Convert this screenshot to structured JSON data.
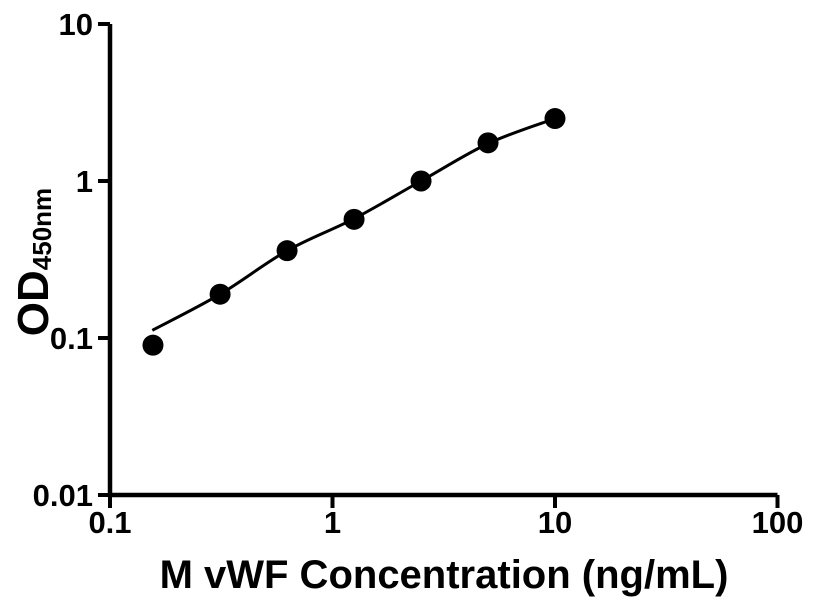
{
  "figure": {
    "background": "#ffffff",
    "axis_color": "#000000"
  },
  "chart_data": {
    "type": "scatter",
    "title": "",
    "xlabel": "M vWF Concentration (ng/mL)",
    "ylabel_main": "OD",
    "ylabel_subscript": "450nm",
    "x_scale": "log",
    "y_scale": "log",
    "xlim": [
      0.1,
      100
    ],
    "ylim": [
      0.01,
      10
    ],
    "x_tick_values": [
      0.1,
      1,
      10,
      100
    ],
    "x_tick_labels": [
      "0.1",
      "1",
      "10",
      "100"
    ],
    "y_tick_values": [
      0.01,
      0.1,
      1,
      10
    ],
    "y_tick_labels": [
      "0.01",
      "0.1",
      "1",
      "10"
    ],
    "grid": false,
    "legend": null,
    "series": [
      {
        "name": "standard-points",
        "type": "scatter",
        "marker": "circle",
        "color": "#000000",
        "x": [
          0.156,
          0.3125,
          0.625,
          1.25,
          2.5,
          5,
          10
        ],
        "y": [
          0.09,
          0.19,
          0.36,
          0.57,
          1.0,
          1.75,
          2.5
        ]
      },
      {
        "name": "fit-curve",
        "type": "line",
        "color": "#000000",
        "x": [
          0.155,
          0.3125,
          0.625,
          1.25,
          2.5,
          5,
          10
        ],
        "y": [
          0.112,
          0.19,
          0.36,
          0.575,
          1.0,
          1.73,
          2.5
        ]
      }
    ]
  }
}
